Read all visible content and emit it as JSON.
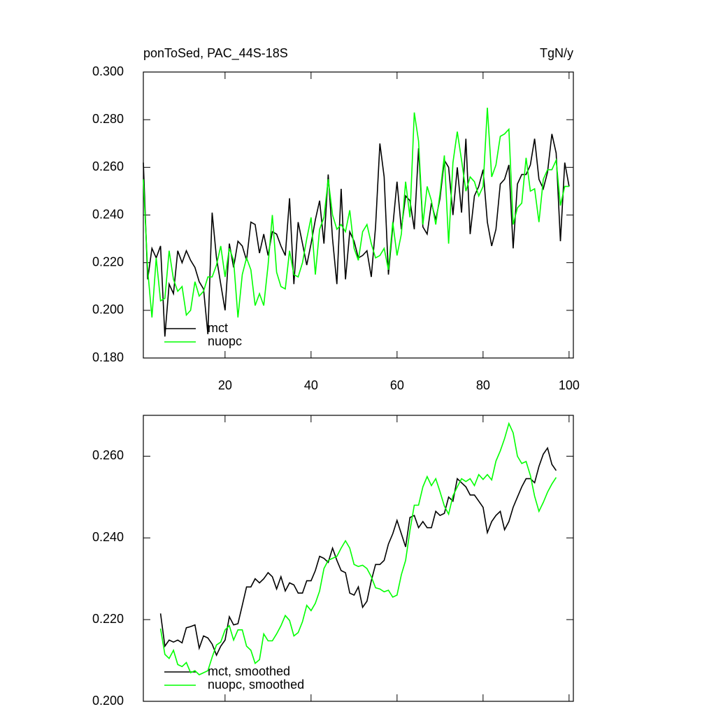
{
  "chart_data": [
    {
      "type": "line",
      "title": "ponToSed, PAC_44S-18S",
      "subtitle": "TgN/y",
      "x": [
        1,
        2,
        3,
        4,
        5,
        6,
        7,
        8,
        9,
        10,
        11,
        12,
        13,
        14,
        15,
        16,
        17,
        18,
        19,
        20,
        21,
        22,
        23,
        24,
        25,
        26,
        27,
        28,
        29,
        30,
        31,
        32,
        33,
        34,
        35,
        36,
        37,
        38,
        39,
        40,
        41,
        42,
        43,
        44,
        45,
        46,
        47,
        48,
        49,
        50,
        51,
        52,
        53,
        54,
        55,
        56,
        57,
        58,
        59,
        60,
        61,
        62,
        63,
        64,
        65,
        66,
        67,
        68,
        69,
        70,
        71,
        72,
        73,
        74,
        75,
        76,
        77,
        78,
        79,
        80,
        81,
        82,
        83,
        84,
        85,
        86,
        87,
        88,
        89,
        90,
        91,
        92,
        93,
        94,
        95,
        96,
        97,
        98,
        99,
        100
      ],
      "series": [
        {
          "name": "mct",
          "color": "#000000",
          "values": [
            0.262,
            0.213,
            0.226,
            0.222,
            0.227,
            0.189,
            0.211,
            0.207,
            0.225,
            0.22,
            0.225,
            0.221,
            0.218,
            0.212,
            0.209,
            0.19,
            0.241,
            0.222,
            0.211,
            0.2,
            0.228,
            0.218,
            0.229,
            0.227,
            0.221,
            0.237,
            0.236,
            0.224,
            0.232,
            0.223,
            0.233,
            0.232,
            0.227,
            0.223,
            0.247,
            0.211,
            0.237,
            0.228,
            0.219,
            0.228,
            0.238,
            0.246,
            0.228,
            0.257,
            0.23,
            0.211,
            0.251,
            0.213,
            0.233,
            0.229,
            0.222,
            0.223,
            0.225,
            0.214,
            0.235,
            0.27,
            0.256,
            0.215,
            0.235,
            0.254,
            0.234,
            0.248,
            0.246,
            0.234,
            0.268,
            0.235,
            0.232,
            0.245,
            0.238,
            0.247,
            0.263,
            0.26,
            0.24,
            0.26,
            0.241,
            0.272,
            0.232,
            0.248,
            0.252,
            0.259,
            0.237,
            0.227,
            0.234,
            0.253,
            0.255,
            0.261,
            0.226,
            0.253,
            0.257,
            0.257,
            0.261,
            0.272,
            0.255,
            0.251,
            0.258,
            0.274,
            0.266,
            0.229,
            0.262,
            0.252
          ]
        },
        {
          "name": "nuopc",
          "color": "#00ff00",
          "values": [
            0.255,
            0.217,
            0.197,
            0.222,
            0.204,
            0.205,
            0.225,
            0.213,
            0.208,
            0.21,
            0.198,
            0.2,
            0.212,
            0.206,
            0.208,
            0.214,
            0.214,
            0.219,
            0.227,
            0.214,
            0.226,
            0.221,
            0.197,
            0.215,
            0.222,
            0.217,
            0.202,
            0.207,
            0.202,
            0.219,
            0.24,
            0.216,
            0.21,
            0.209,
            0.225,
            0.215,
            0.214,
            0.22,
            0.23,
            0.239,
            0.215,
            0.234,
            0.239,
            0.255,
            0.24,
            0.234,
            0.236,
            0.233,
            0.242,
            0.226,
            0.221,
            0.233,
            0.236,
            0.228,
            0.222,
            0.223,
            0.226,
            0.217,
            0.237,
            0.223,
            0.232,
            0.254,
            0.239,
            0.283,
            0.271,
            0.236,
            0.252,
            0.246,
            0.236,
            0.249,
            0.265,
            0.228,
            0.262,
            0.275,
            0.263,
            0.25,
            0.256,
            0.254,
            0.248,
            0.252,
            0.285,
            0.256,
            0.261,
            0.273,
            0.274,
            0.276,
            0.236,
            0.243,
            0.245,
            0.264,
            0.25,
            0.251,
            0.237,
            0.255,
            0.259,
            0.259,
            0.263,
            0.244,
            0.252,
            0.252
          ]
        }
      ],
      "xlim": [
        1,
        101
      ],
      "ylim": [
        0.18,
        0.3
      ],
      "xticks": [
        20,
        40,
        60,
        80,
        100
      ],
      "xtick_labels": true,
      "yticks": [
        {
          "value": 0.18,
          "label": "0.180"
        },
        {
          "value": 0.2,
          "label": "0.200"
        },
        {
          "value": 0.22,
          "label": "0.220"
        },
        {
          "value": 0.24,
          "label": "0.240"
        },
        {
          "value": 0.26,
          "label": "0.260"
        },
        {
          "value": 0.28,
          "label": "0.280"
        },
        {
          "value": 0.3,
          "label": "0.300"
        }
      ],
      "legend": "lower left"
    },
    {
      "type": "line",
      "x": [
        5,
        6,
        7,
        8,
        9,
        10,
        11,
        12,
        13,
        14,
        15,
        16,
        17,
        18,
        19,
        20,
        21,
        22,
        23,
        24,
        25,
        26,
        27,
        28,
        29,
        30,
        31,
        32,
        33,
        34,
        35,
        36,
        37,
        38,
        39,
        40,
        41,
        42,
        43,
        44,
        45,
        46,
        47,
        48,
        49,
        50,
        51,
        52,
        53,
        54,
        55,
        56,
        57,
        58,
        59,
        60,
        61,
        62,
        63,
        64,
        65,
        66,
        67,
        68,
        69,
        70,
        71,
        72,
        73,
        74,
        75,
        76,
        77,
        78,
        79,
        80,
        81,
        82,
        83,
        84,
        85,
        86,
        87,
        88,
        89,
        90,
        91,
        92,
        93,
        94,
        95,
        96,
        97
      ],
      "series": [
        {
          "name": "mct, smoothed",
          "color": "#000000",
          "values": [
            0.2215,
            0.2135,
            0.215,
            0.2145,
            0.215,
            0.2143,
            0.218,
            0.2183,
            0.2187,
            0.213,
            0.216,
            0.2155,
            0.214,
            0.2113,
            0.2135,
            0.215,
            0.2207,
            0.2187,
            0.219,
            0.2235,
            0.228,
            0.228,
            0.23,
            0.229,
            0.23,
            0.2315,
            0.2305,
            0.2275,
            0.2305,
            0.227,
            0.229,
            0.2285,
            0.2265,
            0.2265,
            0.2295,
            0.2295,
            0.232,
            0.2355,
            0.235,
            0.234,
            0.2375,
            0.2345,
            0.232,
            0.2315,
            0.2265,
            0.226,
            0.228,
            0.223,
            0.2245,
            0.2295,
            0.2335,
            0.2335,
            0.2345,
            0.2385,
            0.241,
            0.2443,
            0.241,
            0.2378,
            0.245,
            0.2455,
            0.2425,
            0.244,
            0.2425,
            0.2425,
            0.2465,
            0.2455,
            0.246,
            0.25,
            0.249,
            0.2545,
            0.2535,
            0.2525,
            0.2505,
            0.2505,
            0.249,
            0.2475,
            0.2413,
            0.244,
            0.2455,
            0.2465,
            0.242,
            0.244,
            0.2475,
            0.25,
            0.2525,
            0.2545,
            0.2545,
            0.2535,
            0.2575,
            0.2605,
            0.262,
            0.258,
            0.2565
          ]
        },
        {
          "name": "nuopc, smoothed",
          "color": "#00ff00",
          "values": [
            0.2178,
            0.2115,
            0.2105,
            0.2125,
            0.209,
            0.2085,
            0.2095,
            0.207,
            0.2075,
            0.2065,
            0.207,
            0.2075,
            0.2108,
            0.2138,
            0.2145,
            0.2175,
            0.2185,
            0.215,
            0.2175,
            0.2175,
            0.2135,
            0.2125,
            0.2093,
            0.2102,
            0.2165,
            0.2148,
            0.2148,
            0.2165,
            0.2185,
            0.221,
            0.2198,
            0.216,
            0.2168,
            0.2195,
            0.2235,
            0.2222,
            0.224,
            0.227,
            0.2325,
            0.2345,
            0.235,
            0.2355,
            0.2375,
            0.2393,
            0.2375,
            0.2335,
            0.233,
            0.2333,
            0.2325,
            0.2305,
            0.2278,
            0.2275,
            0.2268,
            0.2272,
            0.2255,
            0.226,
            0.231,
            0.2345,
            0.2418,
            0.248,
            0.248,
            0.2525,
            0.255,
            0.2528,
            0.2545,
            0.2513,
            0.2478,
            0.2458,
            0.2503,
            0.2525,
            0.2545,
            0.2538,
            0.2545,
            0.2528,
            0.2555,
            0.2543,
            0.2555,
            0.2542,
            0.2588,
            0.2613,
            0.2643,
            0.268,
            0.2657,
            0.26,
            0.2582,
            0.2587,
            0.2553,
            0.2502,
            0.2465,
            0.2487,
            0.2512,
            0.2532,
            0.2548
          ]
        }
      ],
      "xlim": [
        1,
        101
      ],
      "ylim": [
        0.2,
        0.27
      ],
      "xticks": [
        20,
        40,
        60,
        80,
        100
      ],
      "xtick_labels": false,
      "yticks": [
        {
          "value": 0.2,
          "label": "0.200"
        },
        {
          "value": 0.22,
          "label": "0.220"
        },
        {
          "value": 0.24,
          "label": "0.240"
        },
        {
          "value": 0.26,
          "label": "0.260"
        }
      ],
      "legend": "lower left"
    }
  ]
}
